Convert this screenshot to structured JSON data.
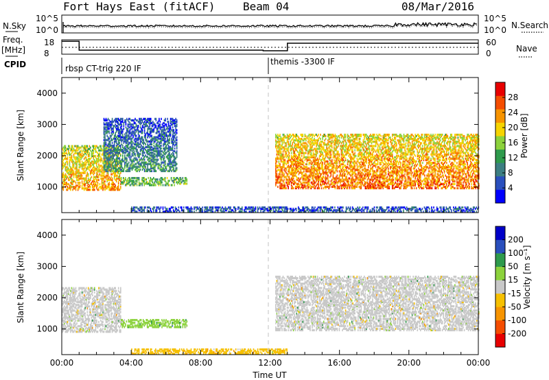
{
  "header": {
    "station": "Fort Hays East (fitACF)",
    "beam": "Beam 04",
    "date": "08/Mar/2016"
  },
  "top_panels": {
    "nsky_label": "N.Sky",
    "nsky_ticks": [
      "10^5",
      "10^0"
    ],
    "nsearch_label": "N.Search",
    "nsearch_ticks": [
      "10^5",
      "10^0"
    ],
    "freq_label": "Freq.",
    "freq_unit": "[MHz]",
    "freq_ticks": [
      "18",
      "8"
    ],
    "nave_label": "Nave",
    "nave_ticks": [
      "60",
      "0"
    ],
    "cpid_label": "CPID",
    "cpid_segments": [
      {
        "start_hour": 0.0,
        "label": "rbsp CT-trig 220 IF"
      },
      {
        "start_hour": 12.0,
        "label": "themis -3300 IF"
      }
    ],
    "freq_series": [
      {
        "start_hour": 0.0,
        "end_hour": 1.0,
        "mhz": 17.0
      },
      {
        "start_hour": 1.0,
        "end_hour": 11.6,
        "mhz": 10.8
      },
      {
        "start_hour": 11.6,
        "end_hour": 13.0,
        "mhz": 10.4
      },
      {
        "start_hour": 13.0,
        "end_hour": 24.0,
        "mhz": 15.6
      }
    ]
  },
  "chart_data": [
    {
      "type": "heatmap",
      "panel": "power",
      "xlabel": "",
      "ylabel": "Slant Range [km]",
      "xlim": [
        0,
        24
      ],
      "ylim": [
        180,
        4500
      ],
      "yticks": [
        1000,
        2000,
        3000,
        4000
      ],
      "colorbar": {
        "label": "Power [dB]",
        "range": [
          0,
          32
        ],
        "ticks": [
          4,
          8,
          12,
          16,
          20,
          24,
          28
        ],
        "colors": [
          "#0000ff",
          "#2a4fbd",
          "#3c7e82",
          "#2e9a4c",
          "#8cd23c",
          "#f6d400",
          "#f79400",
          "#f54d00",
          "#e80000"
        ]
      },
      "regions": [
        {
          "name": "early near-range echo",
          "x_start": 0.0,
          "x_end": 3.4,
          "range_low": 900,
          "range_high": 2300,
          "dominant_value": 20
        },
        {
          "name": "ascending scatter arc",
          "x_start": 2.4,
          "x_end": 6.6,
          "range_low": 1500,
          "range_high": 3200,
          "dominant_value": 8
        },
        {
          "name": "mid-morning band",
          "x_start": 3.4,
          "x_end": 7.2,
          "range_low": 1050,
          "range_high": 1320,
          "dominant_value": 14
        },
        {
          "name": "near-range ground clutter",
          "x_start": 4.0,
          "x_end": 24.0,
          "range_low": 200,
          "range_high": 380,
          "dominant_value": 6
        },
        {
          "name": "afternoon main band",
          "x_start": 12.3,
          "x_end": 24.0,
          "range_low": 950,
          "range_high": 2700,
          "dominant_value": 22
        }
      ]
    },
    {
      "type": "heatmap",
      "panel": "velocity",
      "xlabel": "Time UT",
      "ylabel": "Slant Range [km]",
      "xlim": [
        0,
        24
      ],
      "ylim": [
        180,
        4500
      ],
      "xticks": [
        "00:00",
        "04:00",
        "08:00",
        "12:00",
        "16:00",
        "20:00",
        "00:00"
      ],
      "yticks": [
        1000,
        2000,
        3000,
        4000
      ],
      "colorbar": {
        "label": "Velocity [m s⁻¹]",
        "range": [
          -250,
          250
        ],
        "ticks": [
          200,
          100,
          50,
          15,
          -15,
          -50,
          -100,
          -200
        ],
        "colors": [
          "#e80000",
          "#f54d00",
          "#f79400",
          "#f6c000",
          "#c8c8c8",
          "#8cd23c",
          "#2e9a4c",
          "#2a4fbd",
          "#0000c8"
        ]
      },
      "regions": [
        {
          "name": "early ground scatter",
          "x_start": 0.0,
          "x_end": 3.4,
          "range_low": 900,
          "range_high": 2300,
          "dominant_value": 0
        },
        {
          "name": "mid-morning band",
          "x_start": 3.4,
          "x_end": 7.2,
          "range_low": 1050,
          "range_high": 1320,
          "dominant_value": 60
        },
        {
          "name": "near-range low band",
          "x_start": 4.0,
          "x_end": 13.0,
          "range_low": 200,
          "range_high": 380,
          "dominant_value": -40
        },
        {
          "name": "afternoon ground scatter",
          "x_start": 12.3,
          "x_end": 24.0,
          "range_low": 950,
          "range_high": 2700,
          "dominant_value": 0
        }
      ]
    }
  ]
}
